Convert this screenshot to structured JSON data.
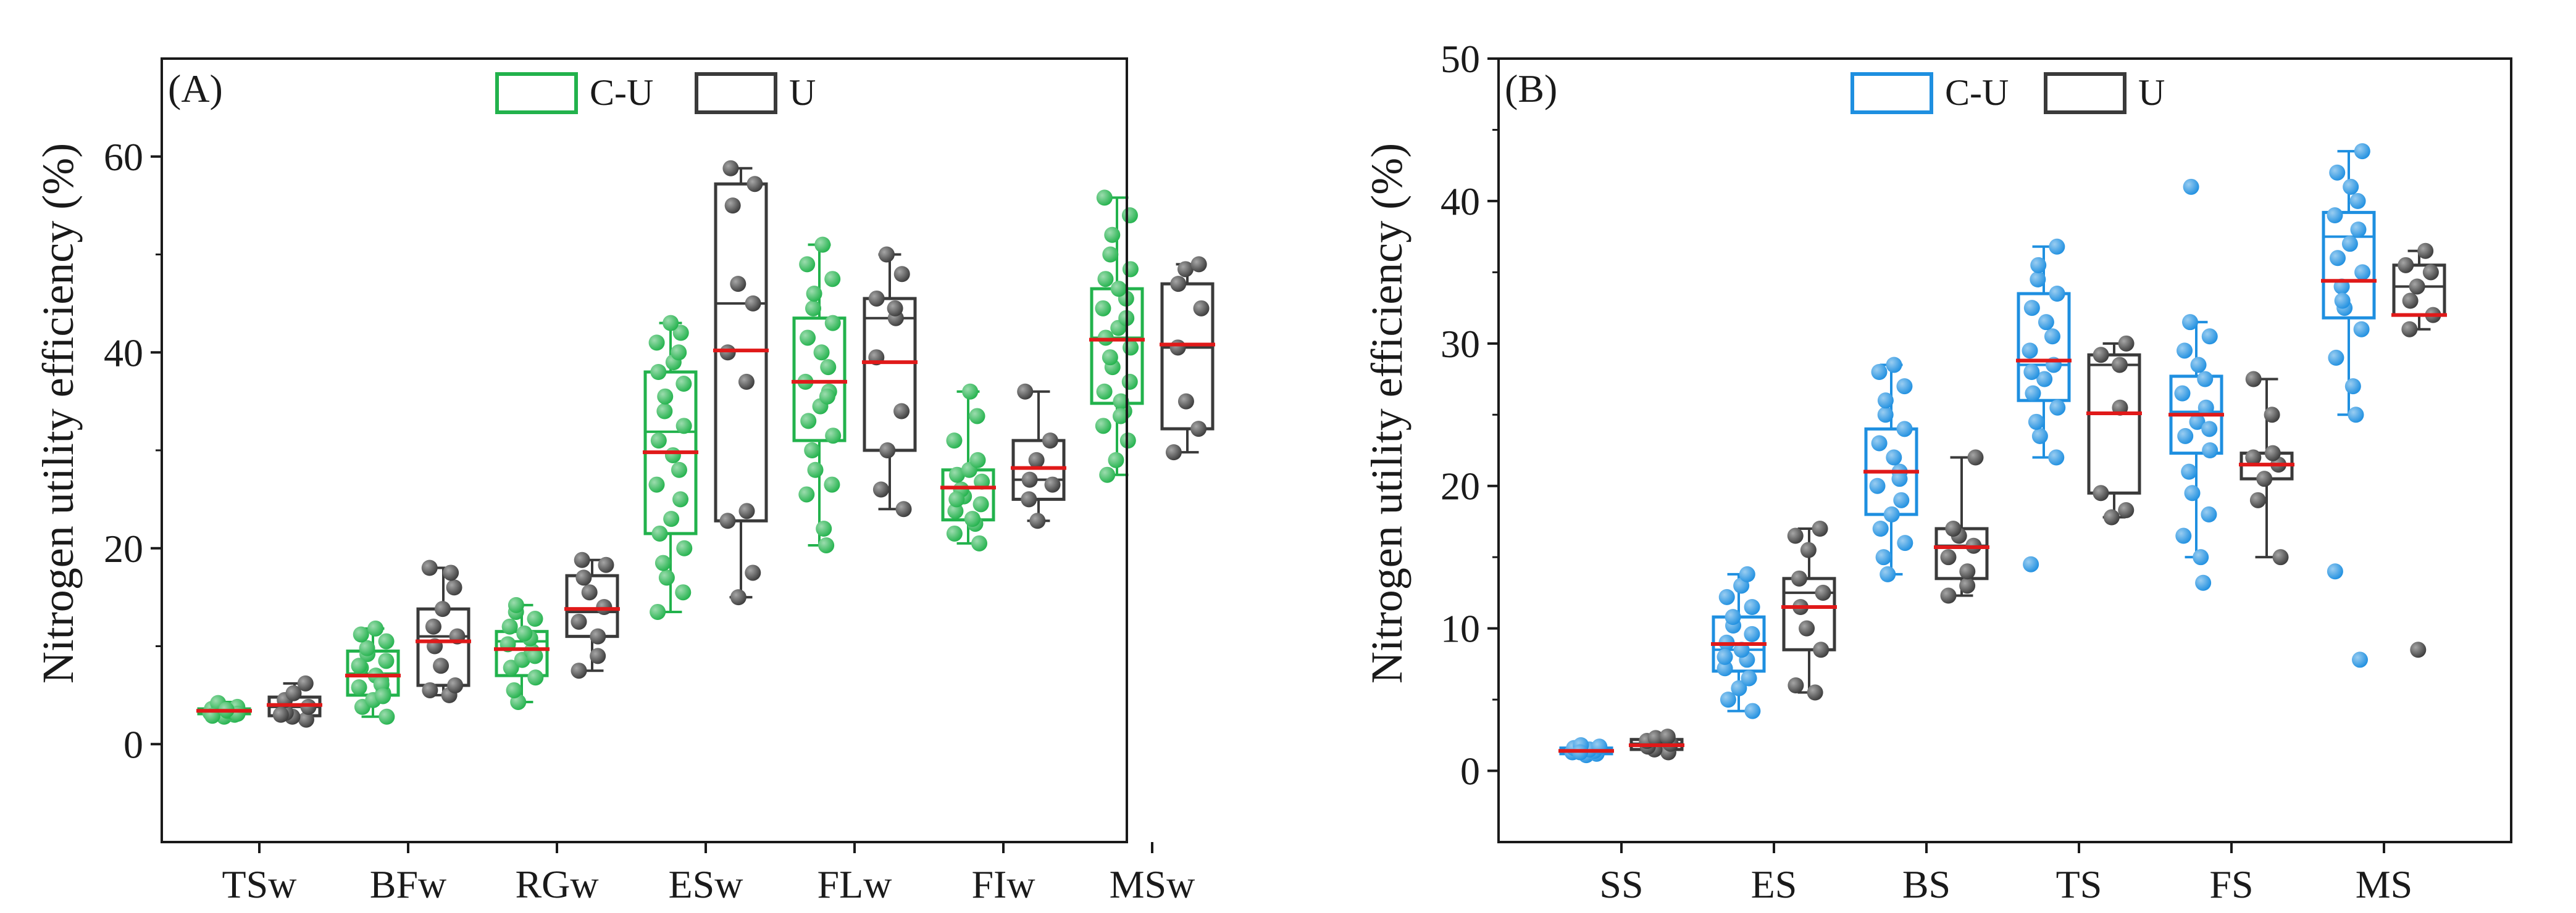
{
  "chart_data": [
    {
      "type": "box",
      "panel_label": "(A)",
      "ylabel": "Nitrogen utility efficiency (%)",
      "xlabel": "",
      "ylim": [
        -10,
        70
      ],
      "yticks": [
        0,
        20,
        40,
        60
      ],
      "categories": [
        "TSw",
        "BFw",
        "RGw",
        "ESw",
        "FLw",
        "FIw",
        "MSw"
      ],
      "legend": [
        {
          "name": "C-U",
          "color": "#22b24c"
        },
        {
          "name": "U",
          "color": "#3a3a3a"
        }
      ],
      "mean_color": "#e01919",
      "series": [
        {
          "name": "C-U",
          "color": "#22b24c",
          "boxes": [
            {
              "min": 2.8,
              "q1": 3.1,
              "median": 3.3,
              "q3": 3.6,
              "max": 4.3,
              "mean": 3.4
            },
            {
              "min": 2.8,
              "q1": 5.0,
              "median": 7.2,
              "q3": 9.5,
              "max": 11.8,
              "mean": 7.0
            },
            {
              "min": 4.3,
              "q1": 7.0,
              "median": 10.5,
              "q3": 11.5,
              "max": 14.2,
              "mean": 9.7
            },
            {
              "min": 13.5,
              "q1": 21.5,
              "median": 31.9,
              "q3": 38.0,
              "max": 43.0,
              "mean": 29.8
            },
            {
              "min": 20.3,
              "q1": 31.0,
              "median": 37.0,
              "q3": 43.5,
              "max": 51.0,
              "mean": 37.0
            },
            {
              "min": 20.5,
              "q1": 22.9,
              "median": 26.2,
              "q3": 28.0,
              "max": 36.0,
              "mean": 26.2
            },
            {
              "min": 27.5,
              "q1": 34.8,
              "median": 41.5,
              "q3": 46.5,
              "max": 55.8,
              "mean": 41.3
            }
          ],
          "points": [
            [
              2.8,
              3.0,
              3.2,
              3.3,
              3.4,
              3.6,
              3.8,
              4.0,
              4.2,
              3.1,
              2.9,
              3.5
            ],
            [
              2.8,
              3.8,
              4.5,
              5.2,
              5.8,
              6.5,
              7.0,
              7.8,
              8.5,
              9.2,
              9.8,
              10.5,
              11.2,
              11.8,
              6.1,
              8.0,
              4.9
            ],
            [
              4.3,
              5.5,
              6.8,
              7.8,
              8.6,
              9.5,
              10.2,
              10.8,
              11.3,
              12.0,
              12.8,
              13.5,
              14.2,
              9.0
            ],
            [
              13.5,
              15.5,
              17.0,
              18.5,
              20.0,
              21.5,
              23.0,
              25.0,
              26.5,
              28.0,
              29.5,
              31.0,
              32.5,
              34.0,
              35.5,
              36.8,
              38.0,
              39.0,
              40.0,
              41.0,
              42.0,
              43.0
            ],
            [
              20.3,
              22.0,
              25.5,
              26.5,
              28.0,
              30.0,
              31.5,
              33.0,
              34.5,
              36.0,
              37.0,
              38.5,
              40.0,
              41.5,
              43.0,
              44.5,
              46.0,
              47.5,
              49.0,
              51.0,
              35.5
            ],
            [
              20.5,
              21.5,
              22.5,
              23.0,
              23.8,
              24.5,
              25.3,
              26.0,
              26.8,
              27.5,
              28.0,
              29.0,
              31.0,
              33.5,
              36.0,
              25.0
            ],
            [
              27.5,
              29.0,
              31.0,
              32.5,
              34.0,
              35.0,
              36.0,
              37.0,
              38.5,
              39.5,
              40.5,
              41.5,
              42.5,
              43.5,
              44.5,
              45.5,
              46.5,
              47.5,
              48.5,
              50.0,
              52.0,
              54.0,
              55.8,
              33.5
            ]
          ]
        },
        {
          "name": "U",
          "color": "#3a3a3a",
          "boxes": [
            {
              "min": 2.5,
              "q1": 2.9,
              "median": 3.8,
              "q3": 4.8,
              "max": 6.2,
              "mean": 4.0
            },
            {
              "min": 5.0,
              "q1": 6.0,
              "median": 11.0,
              "q3": 13.8,
              "max": 18.0,
              "mean": 10.5
            },
            {
              "min": 7.5,
              "q1": 11.0,
              "median": 13.5,
              "q3": 17.2,
              "max": 18.8,
              "mean": 13.8
            },
            {
              "min": 15.0,
              "q1": 22.8,
              "median": 45.0,
              "q3": 57.2,
              "max": 58.8,
              "mean": 40.2
            },
            {
              "min": 24.0,
              "q1": 30.0,
              "median": 43.5,
              "q3": 45.5,
              "max": 50.0,
              "mean": 39.0
            },
            {
              "min": 22.8,
              "q1": 25.0,
              "median": 27.0,
              "q3": 31.0,
              "max": 36.0,
              "mean": 28.2
            },
            {
              "min": 29.8,
              "q1": 32.2,
              "median": 40.5,
              "q3": 47.0,
              "max": 49.0,
              "mean": 40.8
            }
          ],
          "points": [
            [
              2.5,
              2.8,
              3.2,
              3.8,
              4.5,
              5.2,
              6.2,
              3.0
            ],
            [
              5.0,
              5.5,
              6.0,
              8.0,
              10.0,
              11.0,
              12.0,
              13.8,
              16.0,
              18.0,
              17.5
            ],
            [
              7.5,
              9.0,
              11.0,
              12.5,
              14.0,
              15.5,
              17.0,
              18.3,
              18.8
            ],
            [
              15.0,
              17.5,
              22.8,
              23.8,
              37.0,
              40.0,
              45.0,
              47.0,
              55.0,
              57.2,
              58.8
            ],
            [
              24.0,
              26.0,
              30.0,
              34.0,
              39.5,
              43.5,
              44.5,
              45.5,
              48.0,
              50.0
            ],
            [
              22.8,
              25.0,
              26.5,
              27.0,
              29.0,
              31.0,
              36.0
            ],
            [
              29.8,
              32.2,
              35.0,
              40.5,
              44.5,
              47.0,
              48.5,
              49.0
            ]
          ]
        }
      ]
    },
    {
      "type": "box",
      "panel_label": "(B)",
      "ylabel": "Nitrogen utility efficiency (%)",
      "xlabel": "",
      "ylim": [
        -5,
        50
      ],
      "yticks": [
        0,
        10,
        20,
        30,
        40,
        50
      ],
      "categories": [
        "SS",
        "ES",
        "BS",
        "TS",
        "FS",
        "MS"
      ],
      "legend": [
        {
          "name": "C-U",
          "color": "#1e8fe0"
        },
        {
          "name": "U",
          "color": "#3a3a3a"
        }
      ],
      "mean_color": "#e01919",
      "series": [
        {
          "name": "C-U",
          "color": "#1e8fe0",
          "boxes": [
            {
              "min": 1.1,
              "q1": 1.2,
              "median": 1.4,
              "q3": 1.6,
              "max": 1.8,
              "mean": 1.4
            },
            {
              "min": 4.2,
              "q1": 7.0,
              "median": 8.5,
              "q3": 10.8,
              "max": 13.8,
              "mean": 8.9
            },
            {
              "min": 13.8,
              "q1": 18.0,
              "median": 21.0,
              "q3": 24.0,
              "max": 28.5,
              "mean": 21.0
            },
            {
              "min": 22.0,
              "q1": 26.0,
              "median": 28.5,
              "q3": 33.5,
              "max": 36.8,
              "mean": 28.8
            },
            {
              "min": 15.0,
              "q1": 22.3,
              "median": 25.2,
              "q3": 27.7,
              "max": 31.5,
              "mean": 25.0
            },
            {
              "min": 25.0,
              "q1": 31.8,
              "median": 37.5,
              "q3": 39.2,
              "max": 43.5,
              "mean": 34.4
            }
          ],
          "points": [
            [
              1.1,
              1.2,
              1.3,
              1.4,
              1.5,
              1.6,
              1.7,
              1.8,
              1.3
            ],
            [
              4.2,
              5.0,
              5.8,
              6.5,
              7.2,
              7.8,
              8.5,
              9.0,
              9.6,
              10.2,
              10.8,
              11.5,
              12.2,
              13.0,
              13.8,
              8.0
            ],
            [
              13.8,
              15.0,
              16.0,
              17.0,
              18.0,
              19.0,
              20.0,
              21.0,
              22.0,
              23.0,
              24.0,
              25.0,
              26.0,
              27.0,
              28.0,
              28.5,
              20.5
            ],
            [
              14.5,
              22.0,
              23.5,
              24.5,
              25.5,
              26.5,
              27.5,
              28.5,
              29.5,
              30.5,
              31.5,
              32.5,
              33.5,
              34.5,
              35.5,
              36.8,
              28.0
            ],
            [
              13.2,
              15.0,
              16.5,
              18.0,
              19.5,
              21.0,
              22.5,
              23.5,
              24.5,
              25.5,
              26.5,
              27.5,
              28.5,
              29.5,
              30.5,
              31.5,
              41.0,
              24.0
            ],
            [
              7.8,
              14.0,
              25.0,
              27.0,
              29.0,
              31.0,
              32.5,
              34.0,
              35.0,
              36.0,
              37.0,
              38.0,
              39.0,
              40.0,
              41.0,
              42.0,
              43.5,
              33.0
            ]
          ]
        },
        {
          "name": "U",
          "color": "#3a3a3a",
          "boxes": [
            {
              "min": 1.3,
              "q1": 1.5,
              "median": 1.9,
              "q3": 2.2,
              "max": 2.4,
              "mean": 1.8
            },
            {
              "min": 5.5,
              "q1": 8.5,
              "median": 12.5,
              "q3": 13.5,
              "max": 17.0,
              "mean": 11.5
            },
            {
              "min": 12.3,
              "q1": 13.5,
              "median": 15.8,
              "q3": 17.0,
              "max": 22.0,
              "mean": 15.7
            },
            {
              "min": 17.8,
              "q1": 19.5,
              "median": 28.5,
              "q3": 29.2,
              "max": 30.0,
              "mean": 25.1
            },
            {
              "min": 15.0,
              "q1": 20.5,
              "median": 21.5,
              "q3": 22.3,
              "max": 27.5,
              "mean": 21.5
            },
            {
              "min": 31.0,
              "q1": 32.0,
              "median": 34.0,
              "q3": 35.5,
              "max": 36.5,
              "mean": 32.0
            }
          ],
          "points": [
            [
              1.3,
              1.5,
              1.7,
              1.9,
              2.1,
              2.3,
              2.4
            ],
            [
              5.5,
              6.0,
              8.5,
              10.0,
              11.5,
              12.5,
              13.5,
              15.5,
              17.0,
              16.5
            ],
            [
              12.3,
              13.0,
              14.0,
              15.0,
              15.8,
              16.5,
              17.0,
              22.0
            ],
            [
              17.8,
              18.3,
              19.5,
              25.5,
              28.5,
              29.2,
              30.0
            ],
            [
              15.0,
              19.0,
              20.5,
              21.5,
              22.0,
              22.3,
              25.0,
              27.5
            ],
            [
              8.5,
              31.0,
              32.0,
              33.0,
              34.0,
              35.0,
              35.5,
              36.5
            ]
          ]
        }
      ]
    }
  ]
}
